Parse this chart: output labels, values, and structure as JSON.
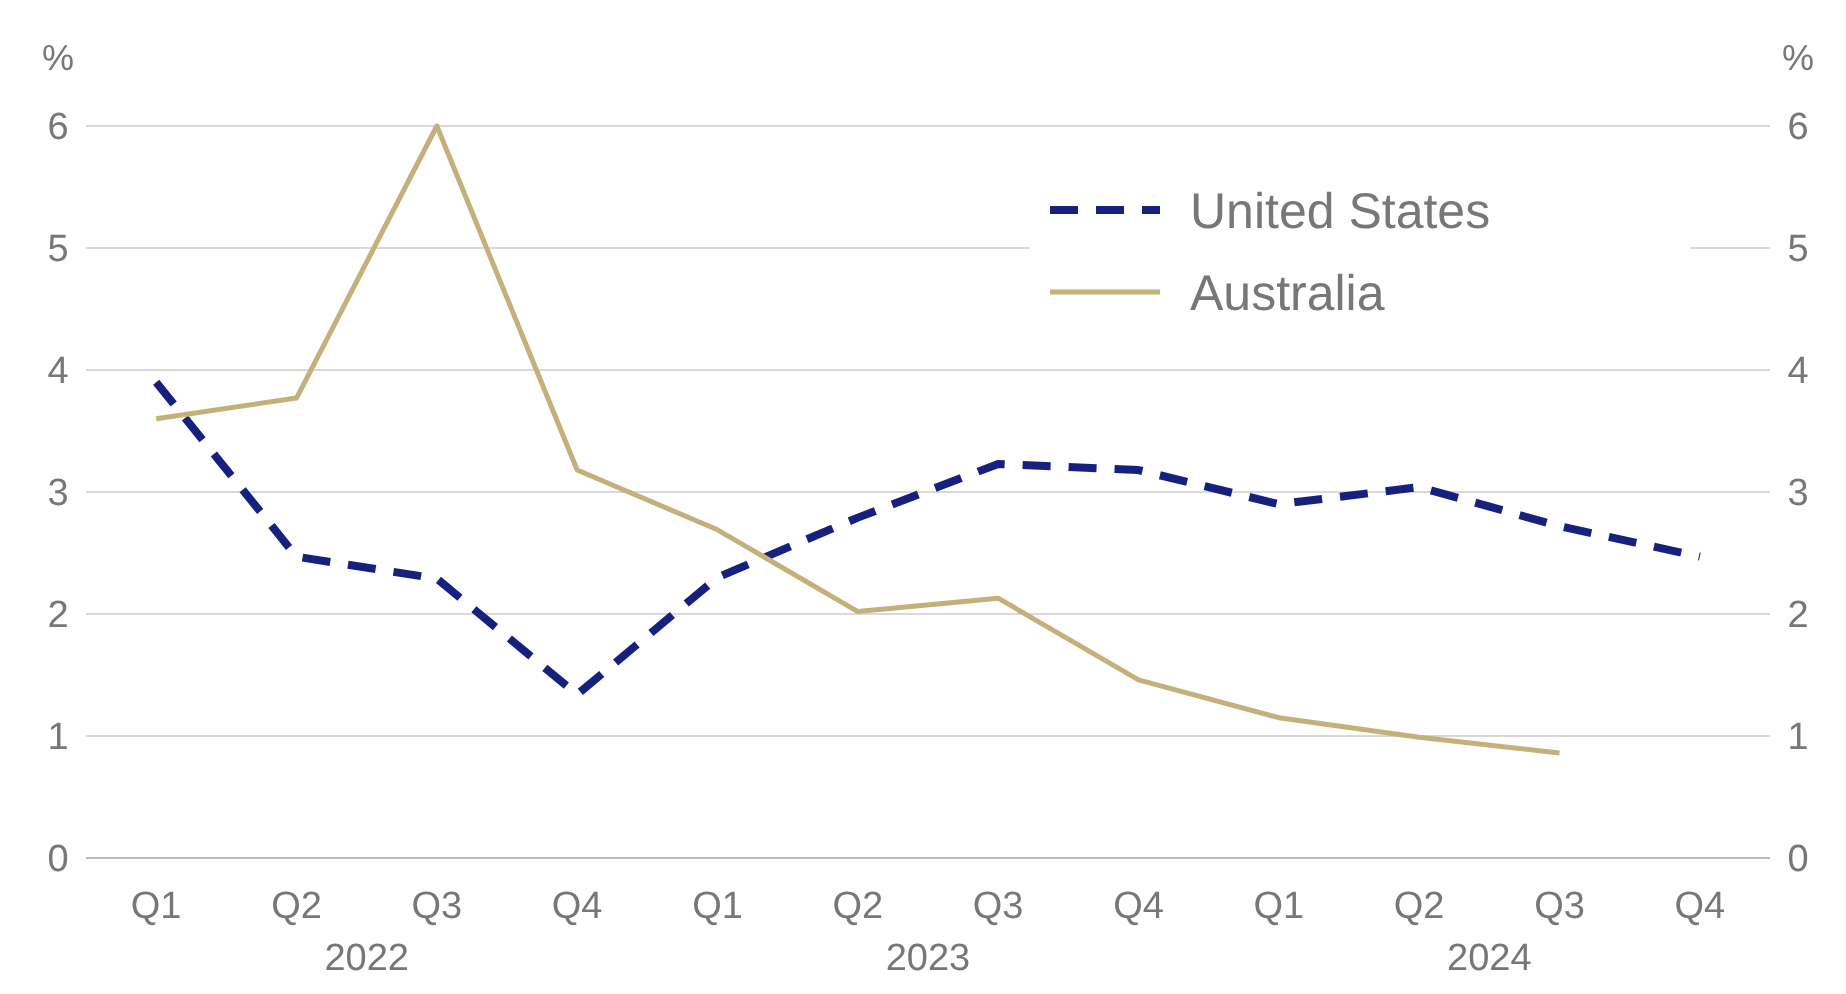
{
  "chart_data": {
    "type": "line",
    "ylabel": "%",
    "y2label": "%",
    "categories": [
      "Q1",
      "Q2",
      "Q3",
      "Q4",
      "Q1",
      "Q2",
      "Q3",
      "Q4",
      "Q1",
      "Q2",
      "Q3",
      "Q4"
    ],
    "annotations": [
      "2022",
      "2023",
      "2024"
    ],
    "series": [
      {
        "name": "United States",
        "color": "#16217f",
        "line_style": "dashed",
        "values": [
          3.9,
          2.47,
          2.29,
          1.34,
          2.3,
          2.79,
          3.23,
          3.18,
          2.9,
          3.04,
          2.72,
          2.47
        ]
      },
      {
        "name": "Australia",
        "color": "#c4b07a",
        "line_style": "solid",
        "values": [
          3.6,
          3.77,
          6.0,
          3.18,
          2.69,
          2.02,
          2.13,
          1.46,
          1.15,
          0.99,
          0.86,
          null
        ]
      }
    ],
    "ylim": [
      0,
      6
    ],
    "yticks": [
      0,
      1,
      2,
      3,
      4,
      5,
      6
    ],
    "y2lim": [
      0,
      6
    ],
    "y2ticks": [
      0,
      1,
      2,
      3,
      4,
      5,
      6
    ],
    "grid": "y",
    "legend": "top right",
    "marker": "none"
  }
}
